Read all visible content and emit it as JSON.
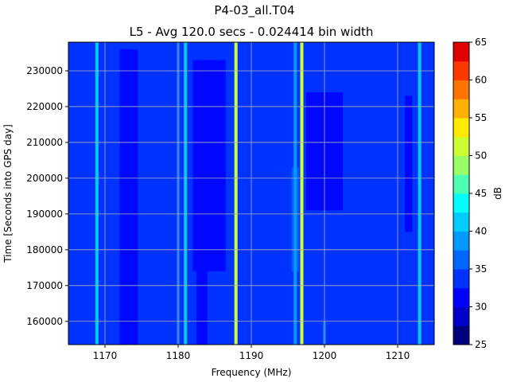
{
  "chart_data": {
    "type": "heatmap",
    "title": "P4-03_all.T04",
    "subtitle": "L5 - Avg 120.0 secs - 0.024414 bin width",
    "xlabel": "Frequency (MHz)",
    "ylabel": "Time [Seconds into GPS day]",
    "xlim": [
      1165,
      1215
    ],
    "ylim": [
      153500,
      238000
    ],
    "xticks": [
      1170,
      1180,
      1190,
      1200,
      1210
    ],
    "yticks": [
      160000,
      170000,
      180000,
      190000,
      200000,
      210000,
      220000,
      230000
    ],
    "grid": true,
    "background_level_db": 33,
    "colorbar": {
      "label": "dB",
      "range": [
        25,
        65
      ],
      "ticks": [
        25,
        30,
        35,
        40,
        45,
        50,
        55,
        60,
        65
      ],
      "levels": [
        25,
        27.5,
        30,
        32.5,
        35,
        37.5,
        40,
        42.5,
        45,
        47.5,
        50,
        52.5,
        55,
        57.5,
        60,
        62.5,
        65
      ],
      "colors": [
        "#00007f",
        "#0000c8",
        "#0000ff",
        "#0033ff",
        "#0066ff",
        "#0099ff",
        "#00ccff",
        "#00ffff",
        "#4cffb2",
        "#99ff66",
        "#ccff33",
        "#ffea00",
        "#ffb000",
        "#ff7300",
        "#ff3800",
        "#e00000",
        "#9a0000"
      ]
    },
    "continuous_lines": [
      {
        "freq_mhz": 1168.9,
        "db": 40
      },
      {
        "freq_mhz": 1181.0,
        "db": 42
      },
      {
        "freq_mhz": 1180.0,
        "db": 37
      },
      {
        "freq_mhz": 1187.9,
        "db": 50
      },
      {
        "freq_mhz": 1196.9,
        "db": 51
      },
      {
        "freq_mhz": 1213.0,
        "db": 42
      }
    ],
    "partial_lines": [
      {
        "freq_mhz": 1196.0,
        "t_start": 153500,
        "t_end": 238000,
        "db": 38
      },
      {
        "freq_mhz": 1200.0,
        "t_start": 153500,
        "t_end": 160000,
        "db": 36
      }
    ],
    "patches": [
      {
        "freq_range": [
          1172.0,
          1174.5
        ],
        "time_range": [
          153500,
          236000
        ],
        "db": 30
      },
      {
        "freq_range": [
          1182.0,
          1186.5
        ],
        "time_range": [
          174000,
          233000
        ],
        "db": 30
      },
      {
        "freq_range": [
          1182.5,
          1184.0
        ],
        "time_range": [
          153500,
          174000
        ],
        "db": 31
      },
      {
        "freq_range": [
          1195.5,
          1196.5
        ],
        "time_range": [
          174000,
          203000
        ],
        "db": 36
      },
      {
        "freq_range": [
          1197.5,
          1202.5
        ],
        "time_range": [
          191000,
          224000
        ],
        "db": 30
      },
      {
        "freq_range": [
          1211.0,
          1212.0
        ],
        "time_range": [
          185000,
          223000
        ],
        "db": 31
      }
    ]
  }
}
